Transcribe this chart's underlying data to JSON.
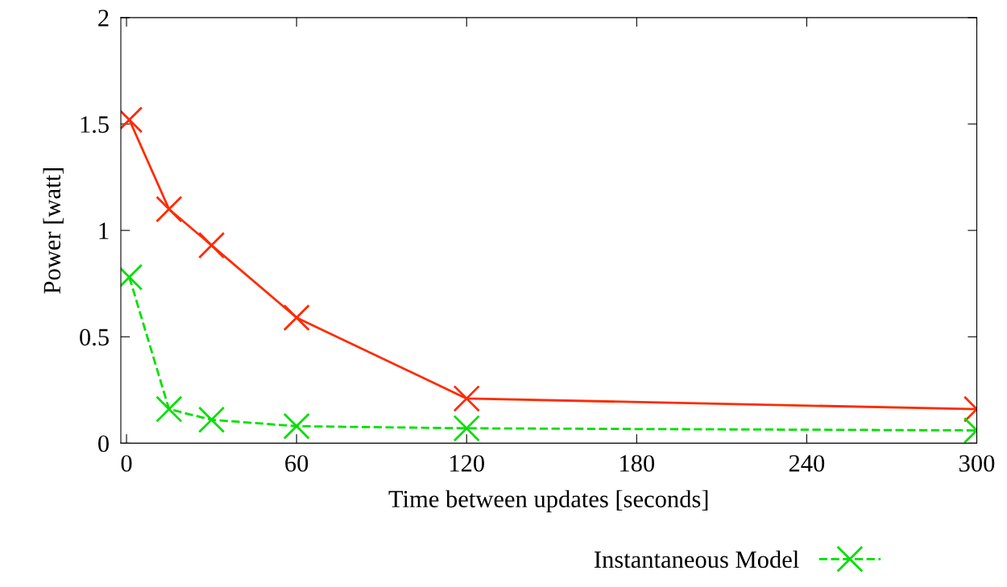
{
  "chart_data": {
    "type": "line",
    "xlabel": "Time between updates [seconds]",
    "ylabel": "Power [watt]",
    "xlim": [
      -2,
      300
    ],
    "xticks": [
      0,
      60,
      120,
      180,
      240,
      300
    ],
    "ylim": [
      0,
      2
    ],
    "yticks": [
      0,
      0.5,
      1,
      1.5,
      2
    ],
    "grid": false,
    "legend": "bottom",
    "series": [
      {
        "color": "#ff2a00",
        "x": [
          1,
          15,
          30,
          60,
          120,
          300
        ],
        "values": [
          1.52,
          1.1,
          0.93,
          0.59,
          0.21,
          0.16
        ],
        "marker": "cross",
        "line_style": "solid"
      },
      {
        "name": "Instantaneous Model",
        "color": "#00e000",
        "x": [
          1,
          15,
          30,
          60,
          120,
          300
        ],
        "values": [
          0.78,
          0.16,
          0.11,
          0.08,
          0.07,
          0.06
        ],
        "marker": "cross",
        "line_style": "dashed"
      }
    ]
  }
}
